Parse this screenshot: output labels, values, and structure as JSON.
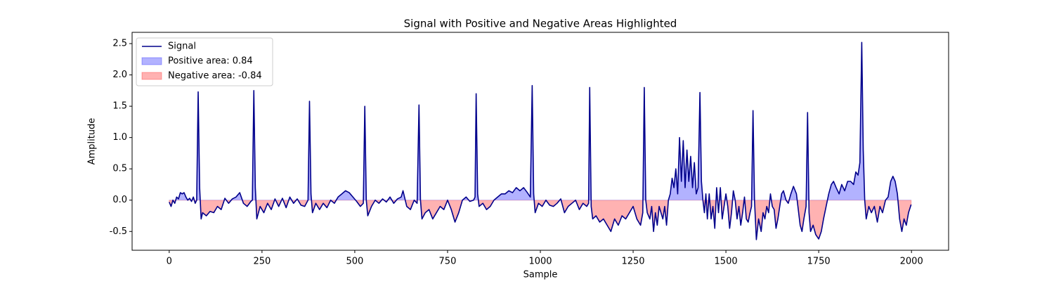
{
  "chart_data": {
    "type": "line",
    "title": "Signal with Positive and Negative Areas Highlighted",
    "x_label": "Sample",
    "y_label": "Amplitude",
    "x": [
      0,
      5,
      10,
      15,
      20,
      25,
      30,
      35,
      40,
      45,
      50,
      55,
      60,
      65,
      70,
      74,
      78,
      82,
      86,
      90,
      100,
      110,
      120,
      130,
      140,
      150,
      160,
      170,
      180,
      190,
      200,
      210,
      220,
      224,
      228,
      232,
      236,
      245,
      255,
      265,
      275,
      285,
      295,
      305,
      315,
      325,
      335,
      345,
      355,
      365,
      374,
      378,
      382,
      386,
      395,
      405,
      415,
      425,
      435,
      445,
      455,
      465,
      475,
      485,
      495,
      505,
      515,
      523,
      527,
      531,
      535,
      545,
      555,
      565,
      575,
      585,
      595,
      605,
      615,
      625,
      630,
      640,
      650,
      660,
      668,
      673,
      677,
      681,
      690,
      700,
      710,
      720,
      730,
      740,
      750,
      760,
      770,
      780,
      790,
      800,
      810,
      820,
      824,
      827,
      831,
      835,
      845,
      855,
      865,
      875,
      885,
      895,
      905,
      915,
      925,
      935,
      945,
      955,
      965,
      973,
      978,
      982,
      986,
      995,
      1005,
      1015,
      1025,
      1035,
      1045,
      1055,
      1065,
      1075,
      1085,
      1095,
      1105,
      1115,
      1125,
      1130,
      1133,
      1137,
      1141,
      1150,
      1160,
      1170,
      1180,
      1190,
      1200,
      1210,
      1220,
      1230,
      1240,
      1250,
      1260,
      1270,
      1276,
      1280,
      1284,
      1288,
      1295,
      1300,
      1305,
      1310,
      1315,
      1320,
      1330,
      1335,
      1340,
      1345,
      1350,
      1355,
      1360,
      1365,
      1370,
      1375,
      1380,
      1385,
      1390,
      1395,
      1400,
      1405,
      1410,
      1415,
      1420,
      1425,
      1430,
      1434,
      1438,
      1442,
      1446,
      1450,
      1455,
      1460,
      1465,
      1470,
      1475,
      1480,
      1485,
      1490,
      1495,
      1500,
      1505,
      1510,
      1515,
      1520,
      1525,
      1530,
      1535,
      1540,
      1545,
      1550,
      1555,
      1560,
      1565,
      1569,
      1573,
      1577,
      1582,
      1588,
      1595,
      1600,
      1605,
      1610,
      1615,
      1620,
      1625,
      1630,
      1635,
      1640,
      1645,
      1650,
      1655,
      1662,
      1668,
      1675,
      1682,
      1690,
      1695,
      1700,
      1705,
      1710,
      1716,
      1720,
      1724,
      1728,
      1735,
      1742,
      1750,
      1757,
      1763,
      1770,
      1777,
      1784,
      1790,
      1797,
      1805,
      1812,
      1820,
      1828,
      1836,
      1844,
      1850,
      1856,
      1861,
      1866,
      1870,
      1874,
      1878,
      1885,
      1892,
      1900,
      1908,
      1915,
      1922,
      1930,
      1937,
      1944,
      1950,
      1956,
      1962,
      1968,
      1974,
      1980,
      1986,
      1992,
      1999
    ],
    "series": [
      {
        "name": "Signal",
        "color": "#00008b",
        "values": [
          -0.03,
          -0.1,
          0.0,
          -0.05,
          0.05,
          0.02,
          0.12,
          0.1,
          0.12,
          0.05,
          0.0,
          0.03,
          -0.02,
          0.05,
          -0.05,
          0.0,
          1.73,
          0.2,
          -0.3,
          -0.2,
          -0.25,
          -0.18,
          -0.2,
          -0.1,
          -0.15,
          0.03,
          -0.05,
          0.02,
          0.05,
          0.12,
          -0.05,
          -0.1,
          -0.02,
          0.0,
          1.75,
          0.2,
          -0.3,
          -0.1,
          -0.2,
          -0.05,
          -0.15,
          0.02,
          -0.1,
          0.03,
          -0.12,
          0.05,
          -0.05,
          0.02,
          -0.08,
          -0.1,
          0.0,
          1.58,
          0.1,
          -0.2,
          -0.05,
          -0.15,
          -0.05,
          -0.12,
          0.0,
          -0.05,
          0.05,
          0.1,
          0.15,
          0.12,
          0.05,
          -0.02,
          -0.1,
          -0.05,
          1.5,
          0.0,
          -0.25,
          -0.1,
          0.0,
          -0.05,
          0.02,
          -0.03,
          0.05,
          -0.05,
          0.02,
          0.05,
          0.15,
          -0.1,
          -0.15,
          0.0,
          -0.05,
          1.52,
          0.0,
          -0.3,
          -0.2,
          -0.15,
          -0.3,
          -0.2,
          -0.1,
          -0.15,
          0.0,
          -0.15,
          -0.35,
          -0.2,
          0.0,
          0.05,
          -0.02,
          0.0,
          0.05,
          1.7,
          0.1,
          -0.1,
          -0.05,
          -0.15,
          -0.1,
          0.0,
          0.05,
          0.1,
          0.1,
          0.15,
          0.12,
          0.2,
          0.15,
          0.2,
          0.12,
          0.05,
          1.83,
          0.1,
          -0.2,
          -0.05,
          -0.1,
          0.0,
          -0.08,
          -0.1,
          -0.05,
          0.02,
          -0.2,
          -0.1,
          -0.05,
          0.0,
          -0.15,
          -0.05,
          -0.1,
          -0.05,
          1.8,
          -0.1,
          -0.3,
          -0.25,
          -0.35,
          -0.3,
          -0.4,
          -0.5,
          -0.3,
          -0.4,
          -0.25,
          -0.3,
          -0.2,
          -0.1,
          -0.3,
          -0.4,
          -0.2,
          1.8,
          0.0,
          -0.2,
          -0.3,
          -0.1,
          -0.5,
          -0.2,
          -0.4,
          -0.1,
          -0.3,
          -0.1,
          -0.4,
          0.0,
          0.1,
          0.35,
          0.2,
          0.5,
          0.1,
          1.0,
          0.3,
          0.95,
          0.2,
          0.8,
          0.3,
          0.7,
          0.2,
          0.6,
          0.1,
          0.2,
          1.72,
          0.3,
          0.0,
          -0.2,
          0.1,
          -0.3,
          0.1,
          -0.3,
          -0.1,
          -0.45,
          0.2,
          -0.2,
          0.2,
          -0.3,
          -0.1,
          0.1,
          -0.1,
          -0.45,
          -0.2,
          0.15,
          0.0,
          -0.3,
          -0.1,
          -0.4,
          -0.2,
          0.05,
          -0.3,
          -0.35,
          -0.2,
          -0.1,
          1.43,
          0.0,
          -0.63,
          -0.3,
          -0.5,
          -0.2,
          -0.3,
          -0.1,
          -0.2,
          0.1,
          -0.1,
          -0.15,
          -0.45,
          -0.3,
          -0.1,
          0.1,
          0.15,
          0.0,
          -0.05,
          0.1,
          0.22,
          0.1,
          -0.15,
          -0.4,
          -0.5,
          -0.3,
          -0.1,
          1.4,
          -0.2,
          -0.5,
          -0.4,
          -0.55,
          -0.62,
          -0.5,
          -0.3,
          -0.1,
          0.1,
          0.25,
          0.3,
          0.2,
          0.1,
          0.25,
          0.15,
          0.3,
          0.3,
          0.25,
          0.45,
          0.4,
          0.6,
          2.52,
          0.8,
          0.0,
          -0.3,
          -0.1,
          -0.2,
          -0.1,
          -0.35,
          -0.1,
          -0.2,
          0.0,
          0.05,
          0.3,
          0.38,
          0.3,
          0.1,
          -0.3,
          -0.5,
          -0.3,
          -0.4,
          -0.2,
          -0.07
        ]
      }
    ],
    "fills": [
      {
        "name": "Positive area: 0.84",
        "color": "#0000ff",
        "where": "above"
      },
      {
        "name": "Negative area: -0.84",
        "color": "#ff0000",
        "where": "below"
      }
    ],
    "xlim": [
      -100,
      2100
    ],
    "ylim": [
      -0.8,
      2.68
    ],
    "xticks": [
      0,
      250,
      500,
      750,
      1000,
      1250,
      1500,
      1750,
      2000
    ],
    "yticks": [
      -0.5,
      {
        "value": 0,
        "label": "0.0"
      },
      {
        "value": 0.5,
        "label": "0.5"
      },
      {
        "value": 1,
        "label": "1.0"
      },
      {
        "value": 1.5,
        "label": "1.5"
      },
      {
        "value": 2,
        "label": "2.0"
      },
      {
        "value": 2.5,
        "label": "2.5"
      }
    ],
    "legend": "upper left"
  }
}
